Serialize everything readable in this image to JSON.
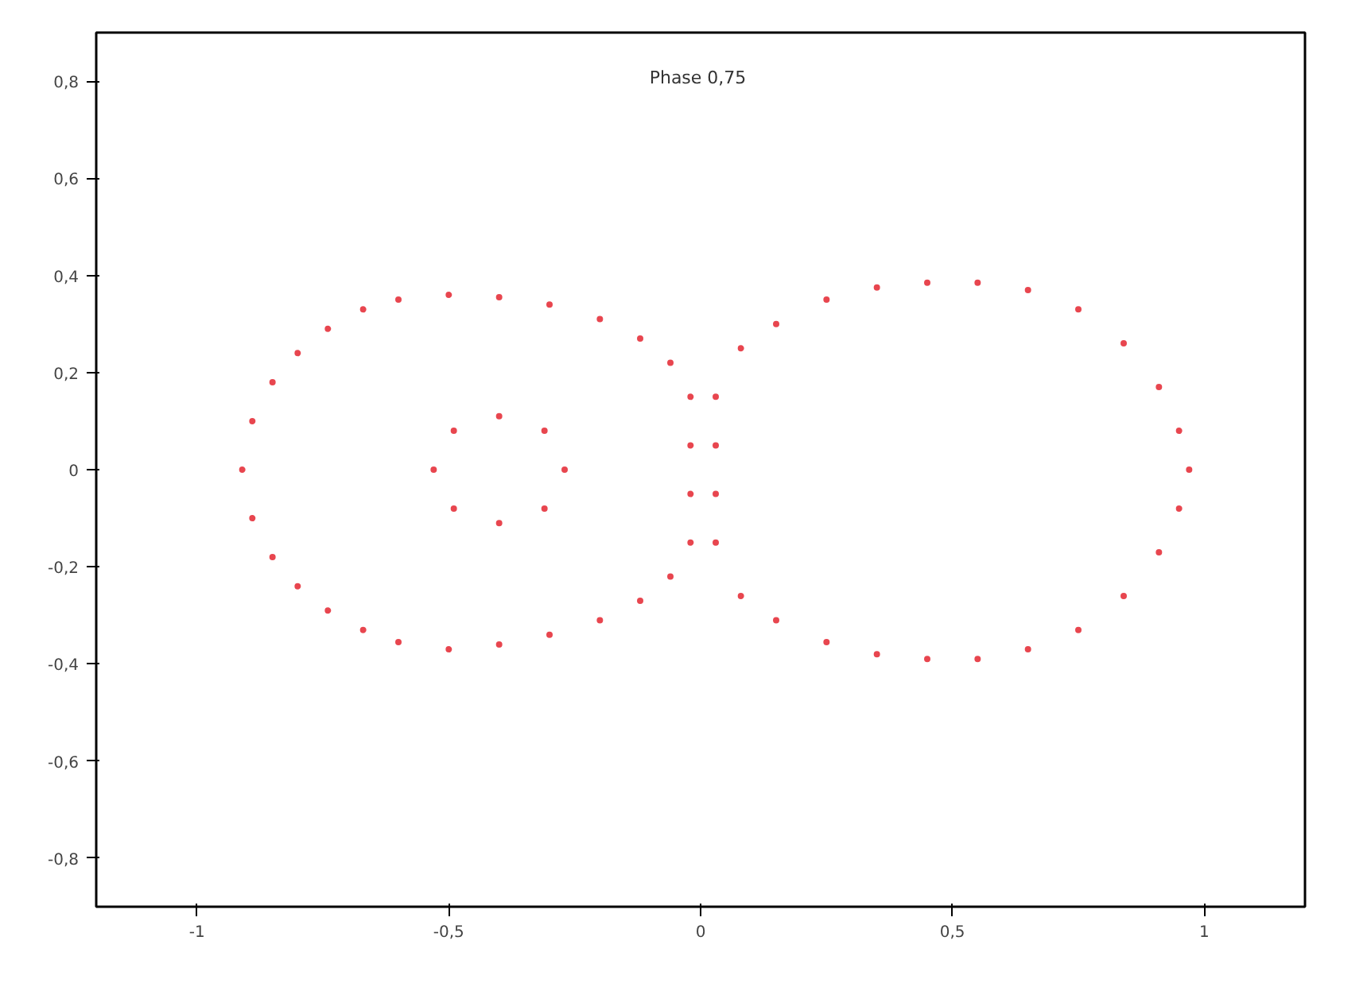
{
  "chart_data": {
    "type": "scatter",
    "title": "Phase  0,75",
    "x": [
      -0.91,
      -0.89,
      -0.85,
      -0.8,
      -0.74,
      -0.67,
      -0.6,
      -0.5,
      -0.4,
      -0.3,
      -0.2,
      -0.12,
      -0.06,
      -0.02,
      -0.02,
      -0.02,
      -0.02,
      -0.06,
      -0.12,
      -0.2,
      -0.3,
      -0.4,
      -0.5,
      -0.6,
      -0.67,
      -0.74,
      -0.8,
      -0.85,
      -0.89,
      -0.53,
      -0.49,
      -0.4,
      -0.31,
      -0.27,
      -0.31,
      -0.4,
      -0.49,
      0.03,
      0.03,
      0.03,
      0.03,
      0.08,
      0.15,
      0.25,
      0.35,
      0.45,
      0.55,
      0.65,
      0.75,
      0.84,
      0.91,
      0.95,
      0.97,
      0.95,
      0.91,
      0.84,
      0.75,
      0.65,
      0.55,
      0.45,
      0.35,
      0.25,
      0.15,
      0.08
    ],
    "values": [
      0,
      0.1,
      0.18,
      0.24,
      0.29,
      0.33,
      0.35,
      0.36,
      0.355,
      0.34,
      0.31,
      0.27,
      0.22,
      0.15,
      0.05,
      -0.05,
      -0.15,
      -0.22,
      -0.27,
      -0.31,
      -0.34,
      -0.36,
      -0.37,
      -0.355,
      -0.33,
      -0.29,
      -0.24,
      -0.18,
      -0.1,
      0,
      0.08,
      0.11,
      0.08,
      0,
      -0.08,
      -0.11,
      -0.08,
      0.15,
      0.05,
      -0.05,
      -0.15,
      0.25,
      0.3,
      0.35,
      0.375,
      0.385,
      0.385,
      0.37,
      0.33,
      0.26,
      0.17,
      0.08,
      0,
      -0.08,
      -0.17,
      -0.26,
      -0.33,
      -0.37,
      -0.39,
      -0.39,
      -0.38,
      -0.355,
      -0.31,
      -0.26
    ],
    "color": "#e8464f",
    "marker": "circle",
    "xlim": [
      -1.2,
      1.2
    ],
    "ylim": [
      -0.9,
      0.9
    ],
    "xticks": [
      {
        "value": -1,
        "label": "-1"
      },
      {
        "value": -0.5,
        "label": "-0,5"
      },
      0,
      {
        "value": 0.5,
        "label": "0,5"
      },
      1
    ],
    "yticks": [
      {
        "value": -0.8,
        "label": "-0,8"
      },
      {
        "value": -0.6,
        "label": "-0,6"
      },
      {
        "value": -0.4,
        "label": "-0,4"
      },
      {
        "value": -0.2,
        "label": "-0,2"
      },
      0,
      {
        "value": 0.2,
        "label": "0,2"
      },
      {
        "value": 0.4,
        "label": "0,4"
      },
      {
        "value": 0.6,
        "label": "0,6"
      },
      {
        "value": 0.8,
        "label": "0,8"
      }
    ],
    "grid": false
  }
}
